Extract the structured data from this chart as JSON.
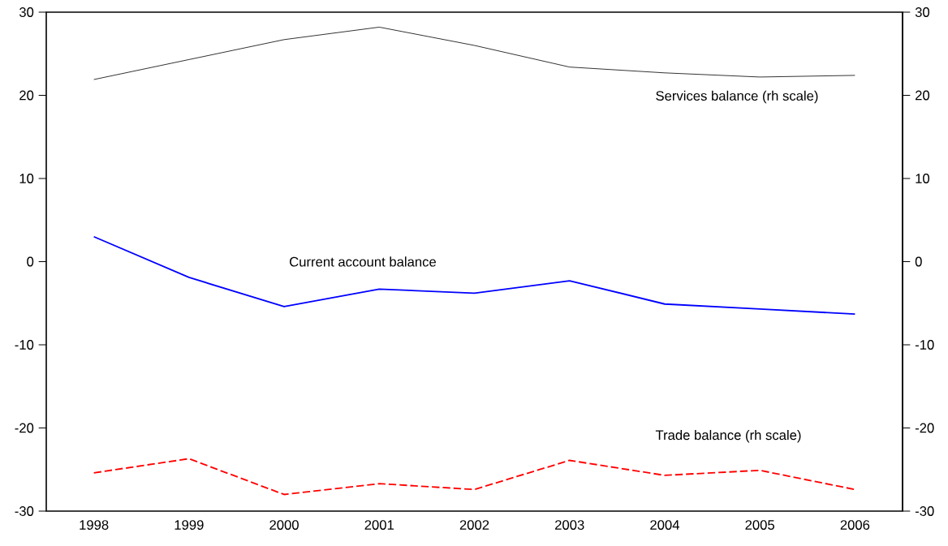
{
  "chart_data": {
    "type": "line",
    "categories": [
      "1998",
      "1999",
      "2000",
      "2001",
      "2002",
      "2003",
      "2004",
      "2005",
      "2006"
    ],
    "series": [
      {
        "name": "Services balance (rh scale)",
        "color": "#000000",
        "axis": "y2",
        "line_style": "solid",
        "values": [
          21.9,
          24.3,
          26.7,
          28.2,
          26.0,
          23.4,
          22.7,
          22.2,
          22.4
        ]
      },
      {
        "name": "Current account balance",
        "color": "#0000ff",
        "line_style": "solid",
        "values": [
          3.0,
          -1.9,
          -5.4,
          -3.3,
          -3.8,
          -2.3,
          -5.1,
          -5.7,
          -6.3
        ]
      },
      {
        "name": "Trade balance (rh scale)",
        "color": "#ff0000",
        "axis": "y2",
        "line_style": "dashed",
        "values": [
          -25.4,
          -23.7,
          -28.0,
          -26.7,
          -27.4,
          -23.9,
          -25.7,
          -25.1,
          -27.4
        ]
      }
    ],
    "ylim": [
      -30,
      30
    ],
    "yticks": [
      -30,
      -20,
      -10,
      0,
      10,
      20,
      30
    ],
    "y2lim": [
      -30,
      30
    ],
    "y2ticks": [
      -30,
      -20,
      -10,
      0,
      10,
      20,
      30
    ]
  }
}
